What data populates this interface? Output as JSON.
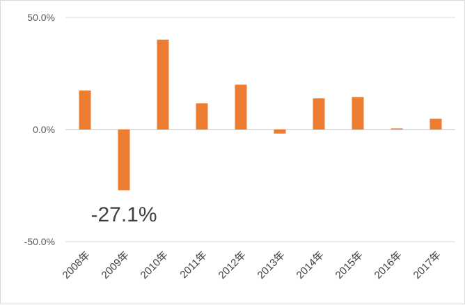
{
  "chart_data": {
    "type": "bar",
    "categories": [
      "2008年",
      "2009年",
      "2010年",
      "2011年",
      "2012年",
      "2013年",
      "2014年",
      "2015年",
      "2016年",
      "2017年"
    ],
    "series": [
      {
        "values": [
          17.4,
          -27.1,
          40.1,
          11.7,
          20.0,
          -1.8,
          13.9,
          14.5,
          0.5,
          4.8
        ]
      }
    ],
    "ylim": [
      -50,
      50
    ],
    "yticks": [
      {
        "value": 50,
        "label": "50.0%"
      },
      {
        "value": 0,
        "label": "0.0%"
      },
      {
        "value": -50,
        "label": "-50.0%"
      }
    ],
    "annotations": [
      {
        "category": "2009年",
        "text": "-27.1%"
      }
    ],
    "title": "",
    "xlabel": "",
    "ylabel": "",
    "grid": "horizontal",
    "legend": "none",
    "bar_color": "#ED7D31",
    "gridline_color": "#d9d9d9",
    "zero_line_color": "#bfbfbf"
  }
}
